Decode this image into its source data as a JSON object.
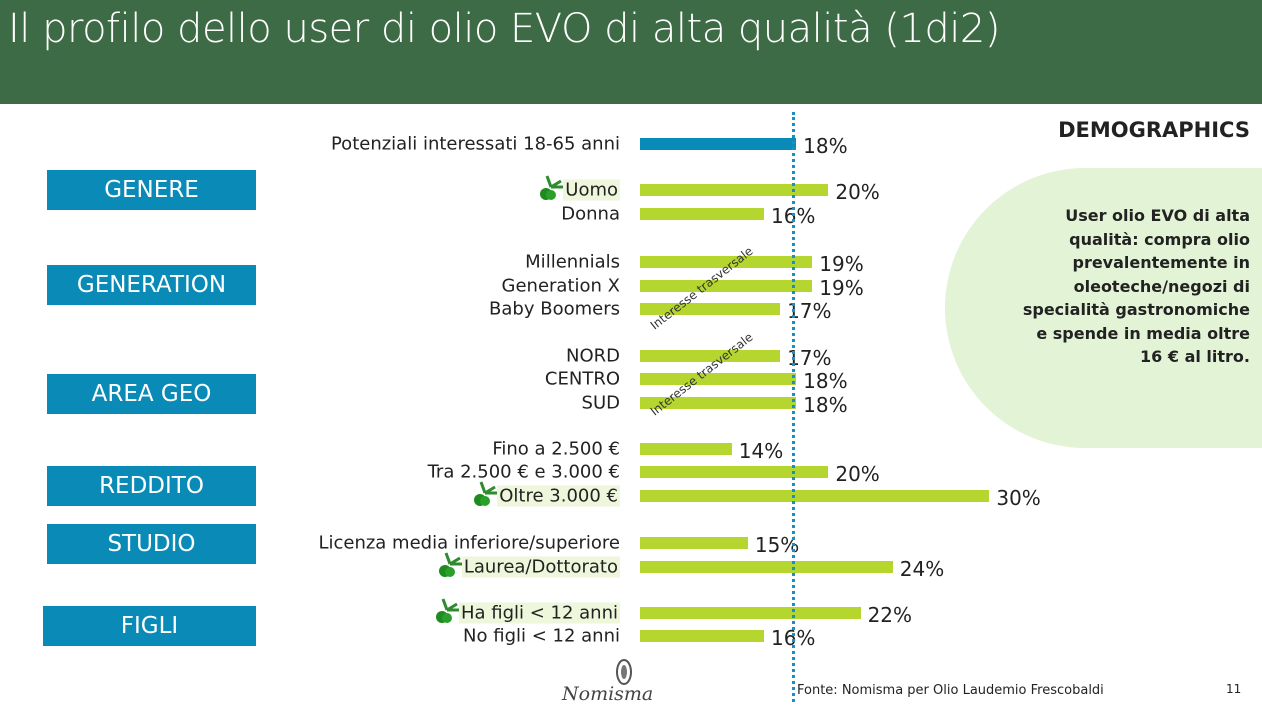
{
  "title": "Il profilo dello user di olio EVO di alta qualità (1di2)",
  "section_label": "DEMOGRAPHICS",
  "callout": "User olio EVO di alta qualità: compra olio prevalentemente in oleoteche/negozi di specialità gastronomiche e spende in media oltre 16 € al litro.",
  "categories": [
    "GENERE",
    "GENERATION",
    "AREA GEO",
    "REDDITO",
    "STUDIO",
    "FIGLI"
  ],
  "annotations": [
    "Interesse trasversale",
    "Interesse trasversale"
  ],
  "source": "Fonte: Nomisma per Olio Laudemio Frescobaldi",
  "page_number": "11",
  "logo_text": "Nomisma",
  "colors": {
    "header": "#3d6b45",
    "category_box": "#0a8ab6",
    "total_bar": "#0a8ab6",
    "bar": "#b5d62e",
    "reference_line": "#1a8fc4",
    "highlight": "#eef6dc"
  },
  "chart_data": {
    "type": "bar",
    "orientation": "horizontal",
    "title": "",
    "reference_line": 18,
    "categories": [
      "Potenziali interessati 18-65 anni",
      "Uomo",
      "Donna",
      "Millennials",
      "Generation X",
      "Baby Boomers",
      "NORD",
      "CENTRO",
      "SUD",
      "Fino a 2.500 €",
      "Tra 2.500 € e 3.000 €",
      "Oltre 3.000  €",
      "Licenza media inferiore/superiore",
      "Laurea/Dottorato",
      "Ha figli < 12 anni",
      "No figli < 12 anni"
    ],
    "values": [
      18,
      20,
      16,
      19,
      19,
      17,
      17,
      18,
      18,
      14,
      20,
      30,
      15,
      24,
      22,
      16
    ],
    "value_labels": [
      "18%",
      "20%",
      "16%",
      "19%",
      "19%",
      "17%",
      "17%",
      "18%",
      "18%",
      "14%",
      "20%",
      "30%",
      "15%",
      "24%",
      "22%",
      "16%"
    ],
    "highlighted": [
      false,
      true,
      false,
      false,
      false,
      false,
      false,
      false,
      false,
      false,
      false,
      true,
      false,
      true,
      true,
      false
    ]
  }
}
